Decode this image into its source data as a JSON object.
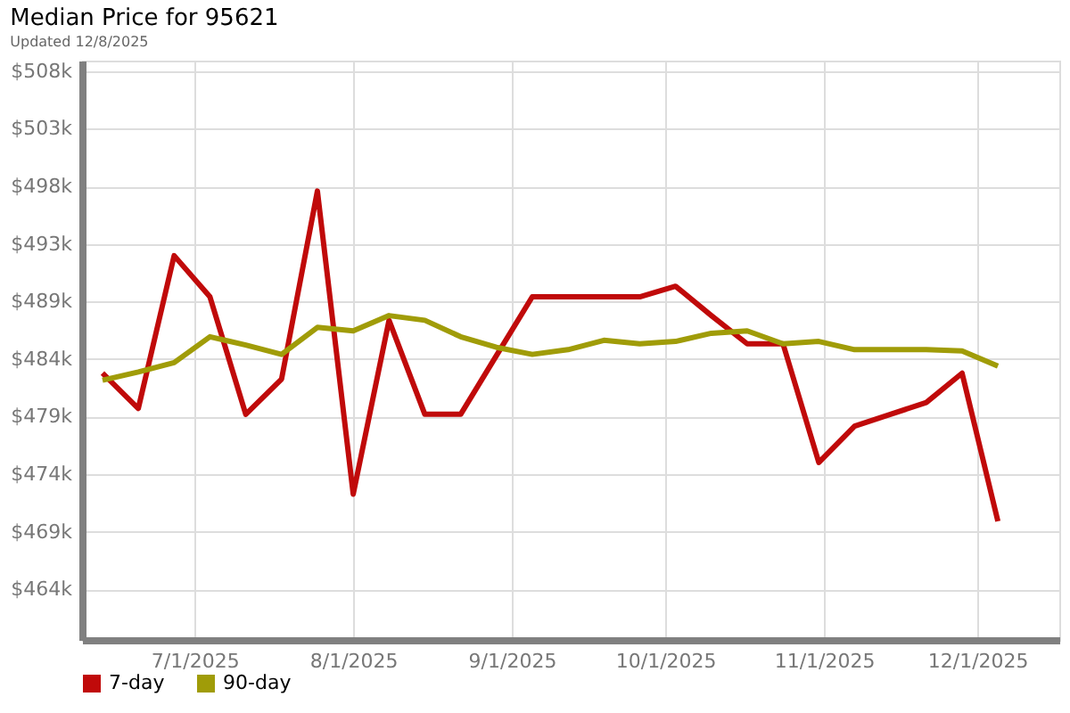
{
  "chart_data": {
    "type": "line",
    "title": "Median Price for 95621",
    "subtitle": "Updated 12/8/2025",
    "x": [
      "2025-06-13",
      "2025-06-20",
      "2025-06-27",
      "2025-07-04",
      "2025-07-11",
      "2025-07-18",
      "2025-07-25",
      "2025-08-01",
      "2025-08-08",
      "2025-08-15",
      "2025-08-22",
      "2025-08-29",
      "2025-09-05",
      "2025-09-12",
      "2025-09-19",
      "2025-09-26",
      "2025-10-03",
      "2025-10-10",
      "2025-10-17",
      "2025-10-24",
      "2025-10-31",
      "2025-11-07",
      "2025-11-14",
      "2025-11-21",
      "2025-11-28",
      "2025-12-05"
    ],
    "series": [
      {
        "name": "7-day",
        "color": "#c00a0a",
        "values": [
          482400,
          479400,
          492400,
          488900,
          478900,
          481900,
          497900,
          472100,
          486900,
          478900,
          478900,
          483900,
          488900,
          488900,
          488900,
          488900,
          489800,
          487300,
          484900,
          484900,
          474800,
          477900,
          478900,
          479900,
          482400,
          469800
        ]
      },
      {
        "name": "90-day",
        "color": "#a09c08",
        "values": [
          481800,
          482500,
          483300,
          485500,
          484800,
          484000,
          486300,
          486000,
          487300,
          486900,
          485500,
          484600,
          484000,
          484400,
          485200,
          484900,
          485100,
          485800,
          486000,
          484900,
          485100,
          484400,
          484400,
          484400,
          484300,
          483000
        ]
      }
    ],
    "xlim": [
      "2025-06-09",
      "2025-12-17"
    ],
    "xticks": [
      {
        "value": "2025-07-01",
        "label": "7/1/2025"
      },
      {
        "value": "2025-08-01",
        "label": "8/1/2025"
      },
      {
        "value": "2025-09-01",
        "label": "9/1/2025"
      },
      {
        "value": "2025-10-01",
        "label": "10/1/2025"
      },
      {
        "value": "2025-11-01",
        "label": "11/1/2025"
      },
      {
        "value": "2025-12-01",
        "label": "12/1/2025"
      }
    ],
    "ylim": [
      459700,
      509000
    ],
    "yticks": [
      {
        "value": 464000,
        "label": "$464k"
      },
      {
        "value": 468900,
        "label": "$469k"
      },
      {
        "value": 473800,
        "label": "$474k"
      },
      {
        "value": 478700,
        "label": "$479k"
      },
      {
        "value": 483600,
        "label": "$484k"
      },
      {
        "value": 488500,
        "label": "$489k"
      },
      {
        "value": 493400,
        "label": "$493k"
      },
      {
        "value": 498300,
        "label": "$498k"
      },
      {
        "value": 503200,
        "label": "$503k"
      },
      {
        "value": 508100,
        "label": "$508k"
      }
    ],
    "grid": true,
    "legend": "bottom left",
    "marker": "none",
    "line_style": "solid"
  }
}
